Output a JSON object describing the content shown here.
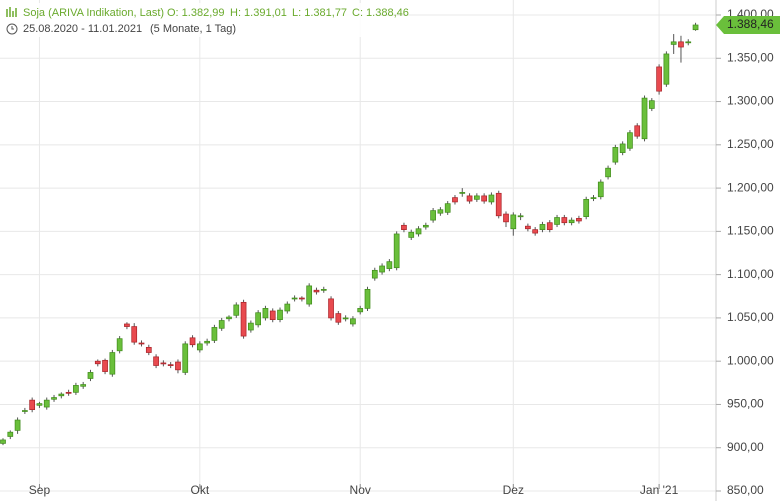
{
  "chart_data": {
    "type": "candlestick",
    "title": "Soja (ARIVA Indikation, Last)",
    "ohlc_labels": [
      "O: 1.382,99",
      "H: 1.391,01",
      "L: 1.381,77",
      "C: 1.388,46"
    ],
    "period": "25.08.2020 - 11.01.2021",
    "period_note": "(5 Monate, 1 Tag)",
    "up_color": "#6abf3b",
    "down_color": "#e84a4f",
    "open": [
      905,
      913,
      920,
      942,
      955,
      949,
      947,
      956,
      960,
      964,
      964,
      971,
      980,
      1000,
      1001,
      985,
      1012,
      1043,
      1040,
      1021,
      1016,
      1005,
      998,
      996,
      999,
      987,
      1027,
      1013,
      1021,
      1024,
      1038,
      1049,
      1053,
      1068,
      1036,
      1042,
      1050,
      1058,
      1048,
      1058,
      1072,
      1073,
      1066,
      1082,
      1082,
      1072,
      1055,
      1049,
      1043,
      1057,
      1061,
      1096,
      1103,
      1107,
      1108,
      1157,
      1143,
      1147,
      1155,
      1163,
      1171,
      1172,
      1189,
      1194,
      1191,
      1187,
      1191,
      1184,
      1194,
      1170,
      1153,
      1167,
      1156,
      1152,
      1152,
      1160,
      1158,
      1166,
      1160,
      1165,
      1167,
      1188,
      1190,
      1213,
      1230,
      1241,
      1246,
      1272,
      1257,
      1292,
      1340,
      1320,
      1366,
      1369,
      1368,
      1382.99
    ],
    "high": [
      911,
      920,
      935,
      946,
      958,
      953,
      958,
      961,
      964,
      967,
      975,
      976,
      990,
      1002,
      1003,
      1013,
      1029,
      1045,
      1044,
      1024,
      1019,
      1008,
      1001,
      999,
      1002,
      1023,
      1030,
      1023,
      1026,
      1042,
      1050,
      1053,
      1068,
      1071,
      1047,
      1059,
      1064,
      1061,
      1062,
      1069,
      1076,
      1075,
      1090,
      1085,
      1086,
      1075,
      1058,
      1053,
      1052,
      1064,
      1086,
      1108,
      1113,
      1118,
      1150,
      1160,
      1152,
      1156,
      1160,
      1177,
      1178,
      1185,
      1192,
      1200,
      1194,
      1194,
      1194,
      1195,
      1197,
      1173,
      1172,
      1171,
      1159,
      1155,
      1161,
      1163,
      1169,
      1169,
      1166,
      1168,
      1190,
      1192,
      1210,
      1226,
      1250,
      1254,
      1267,
      1275,
      1307,
      1304,
      1343,
      1358,
      1378,
      1376,
      1372,
      1391.01
    ],
    "low": [
      903,
      910,
      916,
      939,
      941,
      946,
      944,
      953,
      957,
      960,
      961,
      968,
      977,
      994,
      985,
      982,
      1009,
      1037,
      1019,
      1017,
      1007,
      992,
      994,
      992,
      986,
      984,
      1016,
      1010,
      1018,
      1021,
      1035,
      1046,
      1050,
      1026,
      1033,
      1039,
      1047,
      1045,
      1045,
      1055,
      1069,
      1069,
      1063,
      1077,
      1079,
      1047,
      1042,
      1046,
      1040,
      1054,
      1058,
      1093,
      1100,
      1104,
      1105,
      1149,
      1140,
      1144,
      1152,
      1160,
      1168,
      1169,
      1181,
      1190,
      1182,
      1184,
      1182,
      1181,
      1165,
      1155,
      1145,
      1163,
      1150,
      1145,
      1149,
      1149,
      1155,
      1157,
      1157,
      1159,
      1164,
      1185,
      1187,
      1210,
      1227,
      1238,
      1243,
      1257,
      1254,
      1289,
      1308,
      1317,
      1355,
      1345,
      1365,
      1381.77
    ],
    "close": [
      909,
      918,
      932,
      943,
      944,
      951,
      955,
      958,
      962,
      963,
      972,
      973,
      987,
      997,
      988,
      1010,
      1026,
      1040,
      1022,
      1020,
      1010,
      995,
      997,
      995,
      990,
      1020,
      1019,
      1020,
      1023,
      1039,
      1047,
      1051,
      1065,
      1029,
      1044,
      1056,
      1061,
      1048,
      1059,
      1066,
      1073,
      1072,
      1087,
      1080,
      1083,
      1050,
      1045,
      1050,
      1049,
      1061,
      1083,
      1105,
      1110,
      1115,
      1147,
      1152,
      1149,
      1153,
      1157,
      1174,
      1175,
      1182,
      1184,
      1195,
      1185,
      1191,
      1185,
      1192,
      1168,
      1161,
      1169,
      1168,
      1153,
      1148,
      1158,
      1152,
      1166,
      1160,
      1163,
      1162,
      1187,
      1189,
      1207,
      1223,
      1247,
      1251,
      1264,
      1260,
      1304,
      1301,
      1312,
      1355,
      1369,
      1363,
      1369,
      1388.46
    ],
    "last_price": {
      "value": 1388.46,
      "label": "1.388,46"
    },
    "xticks": [
      {
        "value": 5,
        "label": "Sep"
      },
      {
        "value": 27,
        "label": "Okt"
      },
      {
        "value": 49,
        "label": "Nov"
      },
      {
        "value": 70,
        "label": "Dez"
      },
      {
        "value": 90,
        "label": "Jan '21"
      }
    ],
    "ylim": [
      850,
      1400
    ],
    "yticks": [
      {
        "value": 850,
        "label": "850,00"
      },
      {
        "value": 900,
        "label": "900,00"
      },
      {
        "value": 950,
        "label": "950,00"
      },
      {
        "value": 1000,
        "label": "1.000,00"
      },
      {
        "value": 1050,
        "label": "1.050,00"
      },
      {
        "value": 1100,
        "label": "1.100,00"
      },
      {
        "value": 1150,
        "label": "1.150,00"
      },
      {
        "value": 1200,
        "label": "1.200,00"
      },
      {
        "value": 1250,
        "label": "1.250,00"
      },
      {
        "value": 1300,
        "label": "1.300,00"
      },
      {
        "value": 1350,
        "label": "1.350,00"
      },
      {
        "value": 1400,
        "label": "1.400,00"
      }
    ],
    "grid": true
  }
}
